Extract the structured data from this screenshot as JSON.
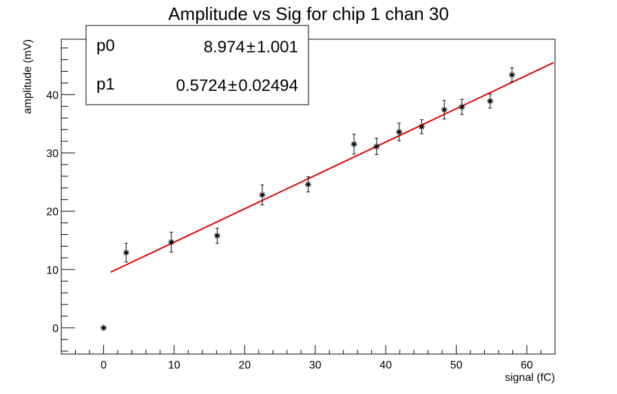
{
  "chart_data": {
    "type": "scatter",
    "title": "Amplitude vs Sig for chip 1 chan 30",
    "xlabel": "signal (fC)",
    "ylabel": "amplitude (mV)",
    "xlim": [
      -6,
      64
    ],
    "ylim": [
      -4.5,
      49.5
    ],
    "x_ticks": [
      0,
      10,
      20,
      30,
      40,
      50,
      60
    ],
    "y_ticks": [
      0,
      10,
      20,
      30,
      40
    ],
    "grid": false,
    "series": [
      {
        "marker": "star",
        "color": "#000000",
        "points": [
          {
            "x": 0,
            "y": 0,
            "err": 0
          },
          {
            "x": 3.2,
            "y": 12.9,
            "err": 1.6
          },
          {
            "x": 9.6,
            "y": 14.7,
            "err": 1.7
          },
          {
            "x": 16.1,
            "y": 15.8,
            "err": 1.3
          },
          {
            "x": 22.5,
            "y": 22.8,
            "err": 1.7
          },
          {
            "x": 29.0,
            "y": 24.6,
            "err": 1.3
          },
          {
            "x": 35.5,
            "y": 31.5,
            "err": 1.7
          },
          {
            "x": 38.7,
            "y": 31.1,
            "err": 1.4
          },
          {
            "x": 41.9,
            "y": 33.6,
            "err": 1.5
          },
          {
            "x": 45.1,
            "y": 34.5,
            "err": 1.2
          },
          {
            "x": 48.3,
            "y": 37.4,
            "err": 1.6
          },
          {
            "x": 50.8,
            "y": 37.9,
            "err": 1.3
          },
          {
            "x": 54.8,
            "y": 38.9,
            "err": 1.2
          },
          {
            "x": 57.9,
            "y": 43.4,
            "err": 1.2
          }
        ]
      }
    ],
    "fit": {
      "type": "line",
      "color": "#e00000",
      "x_range": [
        1.0,
        63.8
      ],
      "p0": 8.974,
      "p1": 0.5724
    },
    "stats_box": {
      "rows": [
        {
          "name": "p0",
          "value": "8.974",
          "error": "1.001"
        },
        {
          "name": "p1",
          "value": "0.5724",
          "error": "0.02494"
        }
      ],
      "pm": "±"
    }
  }
}
